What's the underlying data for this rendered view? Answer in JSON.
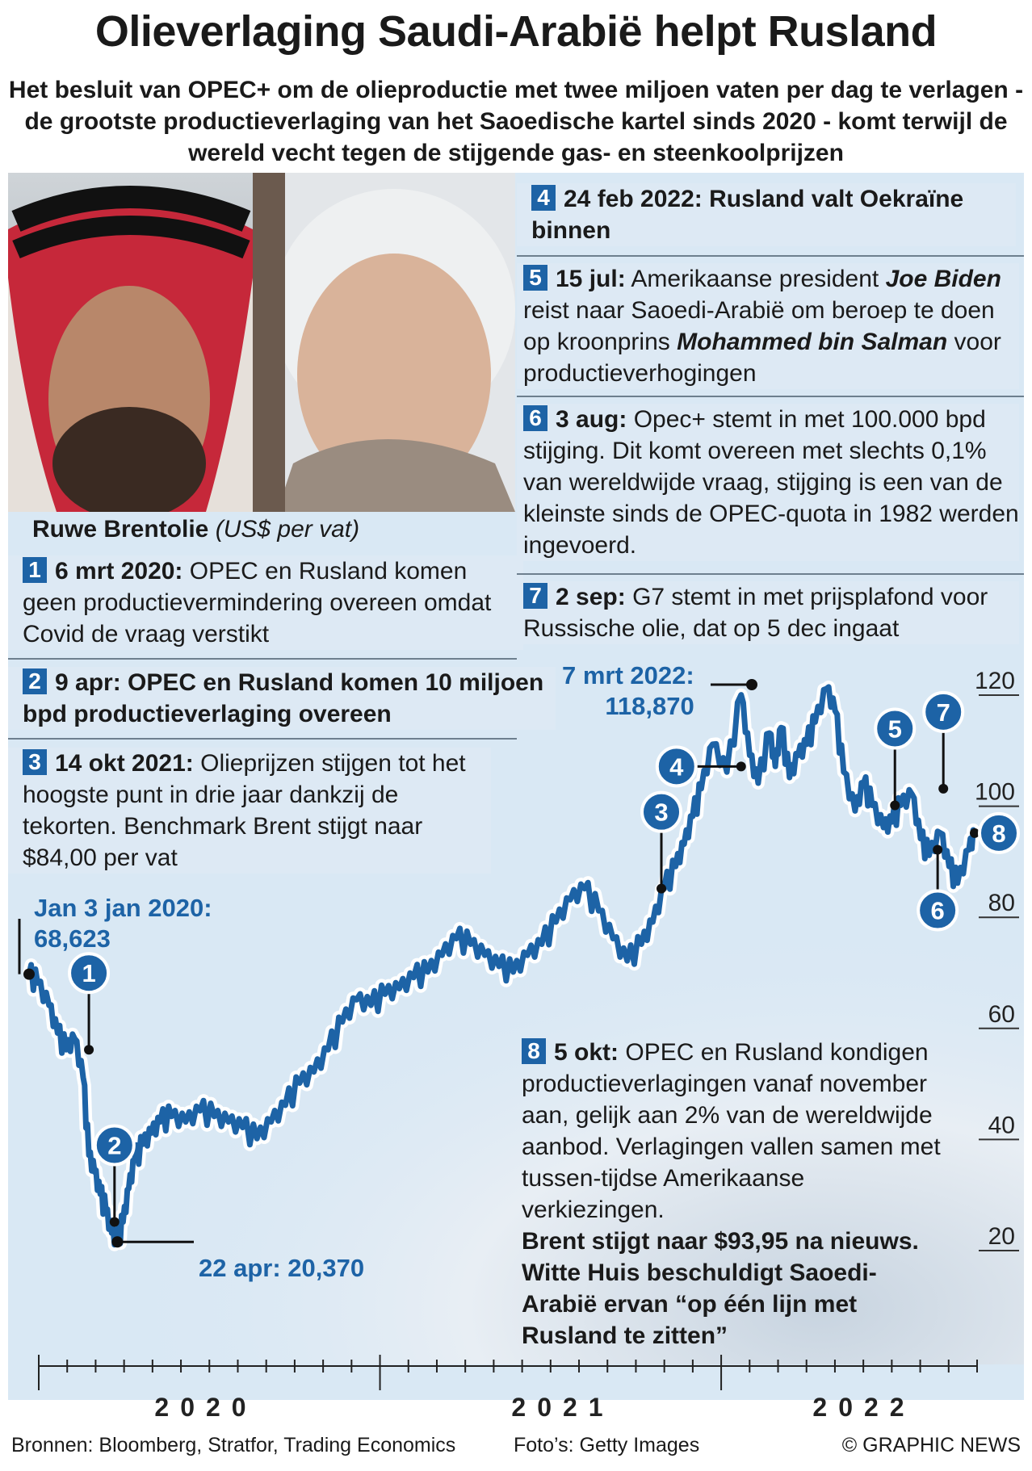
{
  "title": "Olieverlaging Saudi-Arabië helpt Rusland",
  "subtitle": "Het besluit van OPEC+ om de olieproductie met twee miljoen vaten per dag te verlagen - de grootste productieverlaging van het Saoedische kartel sinds 2020 - komt terwijl de wereld vecht tegen de stijgende gas- en steenkoolprijzen",
  "chart_heading": {
    "title": "Ruwe Brentolie",
    "unit": "(US$ per vat)"
  },
  "events": [
    {
      "num": "1",
      "date": "6 mrt 2020:",
      "text": "OPEC en Rusland komen geen productievermindering overeen omdat Covid de vraag verstikt"
    },
    {
      "num": "2",
      "text": "9 apr: OPEC en Rusland komen 10 miljoen bpd productieverlaging overeen"
    },
    {
      "num": "3",
      "date": "14 okt 2021:",
      "text": "Olieprijzen stijgen tot het hoogste punt in drie jaar dankzij de tekorten. Benchmark Brent stijgt naar $84,00 per vat"
    },
    {
      "num": "4",
      "text": "24 feb 2022: Rusland valt Oekraïne binnen"
    },
    {
      "num": "5",
      "date": "15 jul:",
      "text_a": "Amerikaanse president",
      "name_a": "Joe Biden",
      "text_b": "reist naar Saoedi-Arabië om beroep te doen op kroonprins",
      "name_b": "Mohammed bin Salman",
      "text_c": "voor productieverhogingen"
    },
    {
      "num": "6",
      "date": "3 aug:",
      "text": "Opec+ stemt in met 100.000 bpd stijging. Dit komt overeen met slechts 0,1% van wereldwijde vraag, stijging is een van de kleinste sinds de OPEC-quota in 1982 werden ingevoerd."
    },
    {
      "num": "7",
      "date": "2 sep:",
      "text": "G7 stemt in met prijsplafond voor Russische olie, dat op 5 dec ingaat"
    },
    {
      "num": "8",
      "date": "5 okt:",
      "text": "OPEC en Rusland kondigen productieverlagingen vanaf november aan, gelijk aan 2% van de wereldwijde aanbod. Verlagingen vallen samen met tussen-tijdse Amerikaanse verkiezingen.",
      "bold": "Brent stijgt naar $93,95 na nieuws. Witte Huis beschuldigt Saoedi-Arabië ervan “op één lijn met Rusland te zitten”"
    }
  ],
  "annotations": {
    "start": {
      "label": "Jan 3 jan 2020:",
      "value": "68,623"
    },
    "low": {
      "label": "22 apr: 20,370"
    },
    "peak": {
      "label": "7 mrt 2022:",
      "value": "118,870"
    }
  },
  "footer": {
    "sources": "Bronnen: Bloomberg, Stratfor, Trading Economics",
    "photos": "Foto’s: Getty Images",
    "credit": "© GRAPHIC NEWS"
  },
  "colors": {
    "line": "#1d63a6",
    "panel": "#d9e8f4",
    "badge": "#1d63a6"
  },
  "chart_data": {
    "type": "line",
    "title": "Ruwe Brentolie",
    "ylabel": "US$ per vat",
    "ylim": [
      15,
      126
    ],
    "yticks": [
      20,
      40,
      60,
      80,
      100,
      120
    ],
    "xlabels": [
      "2020",
      "2021",
      "2022"
    ],
    "x_range_months": [
      0,
      33.2
    ],
    "series": [
      {
        "name": "Brent",
        "x": [
          0,
          0.3,
          0.7,
          1.0,
          1.3,
          1.6,
          1.9,
          2.1,
          2.3,
          2.5,
          2.7,
          2.9,
          3.1,
          3.3,
          3.5,
          3.7,
          4.0,
          4.3,
          4.6,
          5.0,
          5.5,
          6.0,
          6.5,
          7.0,
          7.5,
          8.0,
          8.5,
          9.0,
          9.5,
          10.0,
          10.5,
          11.0,
          11.5,
          12.0,
          12.5,
          13.0,
          13.5,
          14.0,
          14.5,
          15.0,
          15.5,
          16.0,
          16.5,
          17.0,
          17.5,
          18.0,
          18.5,
          19.0,
          19.5,
          20.0,
          20.5,
          21.0,
          21.5,
          21.9,
          22.3,
          22.7,
          23.0,
          23.3,
          23.6,
          24.0,
          24.5,
          25.0,
          25.3,
          25.6,
          26.0,
          26.2,
          26.4,
          26.7,
          27.0,
          27.3,
          27.6,
          28.0,
          28.3,
          28.6,
          29.0,
          29.3,
          29.6,
          30.0,
          30.3,
          30.6,
          31.0,
          31.3,
          31.6,
          32.0,
          32.3,
          32.6,
          33.0,
          33.2
        ],
        "values": [
          68.6,
          67,
          63,
          58,
          55,
          57,
          50,
          36,
          33,
          29,
          26,
          22,
          20.4,
          24,
          30,
          35,
          38,
          40,
          42,
          43,
          42,
          44,
          43,
          42,
          41,
          39,
          42,
          45,
          49,
          51,
          55,
          60,
          64,
          63,
          65,
          66,
          68,
          69,
          72,
          75,
          74,
          72,
          70,
          69,
          72,
          74,
          78,
          82,
          84,
          80,
          75,
          71,
          74,
          78,
          84,
          88,
          92,
          97,
          102,
          110,
          105,
          118.9,
          108,
          103,
          112,
          106,
          113,
          104,
          108,
          110,
          114,
          120,
          116,
          105,
          98,
          103,
          99,
          95,
          96,
          99,
          101,
          93,
          90,
          94,
          88,
          85,
          91,
          94
        ]
      }
    ],
    "markers": [
      {
        "id": "1",
        "x": 2.1,
        "y": 55,
        "dir": "up"
      },
      {
        "id": "2",
        "x": 3.0,
        "y": 24,
        "dir": "up"
      },
      {
        "id": "3",
        "x": 22.2,
        "y": 84,
        "dir": "up"
      },
      {
        "id": "4",
        "x": 25.0,
        "y": 106,
        "dir": "left"
      },
      {
        "id": "5",
        "x": 30.4,
        "y": 99,
        "dir": "up"
      },
      {
        "id": "6",
        "x": 31.9,
        "y": 91,
        "dir": "down"
      },
      {
        "id": "7",
        "x": 32.1,
        "y": 102,
        "dir": "up"
      },
      {
        "id": "8",
        "x": 33.2,
        "y": 94,
        "dir": "right"
      }
    ]
  }
}
